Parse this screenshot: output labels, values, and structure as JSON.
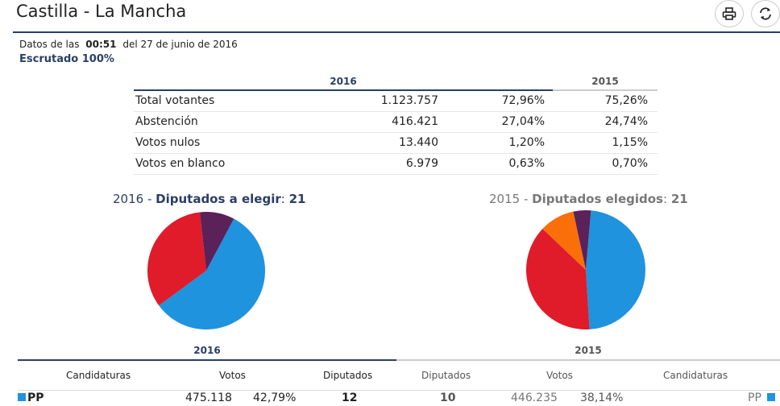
{
  "header": {
    "title": "Castilla - La Mancha",
    "meta_prefix": "Datos de las",
    "meta_time": "00:51",
    "meta_suffix": "del 27 de junio de 2016",
    "escrutado": "Escrutado 100%"
  },
  "summary": {
    "year_current": "2016",
    "year_prev": "2015",
    "rows": [
      {
        "label": "Total votantes",
        "votes": "1.123.757",
        "pct": "72,96%",
        "pct_prev": "75,26%"
      },
      {
        "label": "Abstención",
        "votes": "416.421",
        "pct": "27,04%",
        "pct_prev": "24,74%"
      },
      {
        "label": "Votos nulos",
        "votes": "13.440",
        "pct": "1,20%",
        "pct_prev": "1,15%"
      },
      {
        "label": "Votos en blanco",
        "votes": "6.979",
        "pct": "0,63%",
        "pct_prev": "0,70%"
      }
    ]
  },
  "charts": {
    "c2016": {
      "year": "2016",
      "sep": " - ",
      "label": "Diputados a elegir",
      "colon": ": ",
      "value": "21"
    },
    "c2015": {
      "year": "2015",
      "sep": " - ",
      "label": "Diputados elegidos",
      "colon": ": ",
      "value": "21"
    }
  },
  "chart_data": [
    {
      "type": "pie",
      "series": [
        {
          "color": "#1f93dd",
          "value": 12
        },
        {
          "color": "#e01b2a",
          "value": 7
        },
        {
          "color": "#5b2159",
          "value": 2
        }
      ]
    },
    {
      "type": "pie",
      "series": [
        {
          "color": "#1f93dd",
          "value": 10
        },
        {
          "color": "#e01b2a",
          "value": 8
        },
        {
          "color": "#fb6f0a",
          "value": 2
        },
        {
          "color": "#5b2159",
          "value": 1
        }
      ]
    }
  ],
  "results": {
    "year_current": "2016",
    "year_prev": "2015",
    "cols_left": [
      "Candidaturas",
      "Votos",
      "Diputados"
    ],
    "cols_right": [
      "Diputados",
      "Votos",
      "Candidaturas"
    ],
    "first_row": {
      "party": "PP",
      "votes": "475.118",
      "pct": "42,79%",
      "seats": "12",
      "seats_prev": "10",
      "votes_prev": "446.235",
      "pct_prev": "38,14%",
      "party_prev": "PP"
    }
  },
  "colors": {
    "navy": "#2a3e66",
    "pp": "#1f93dd",
    "psoe": "#e01b2a",
    "podemos": "#5b2159",
    "cs": "#fb6f0a"
  }
}
